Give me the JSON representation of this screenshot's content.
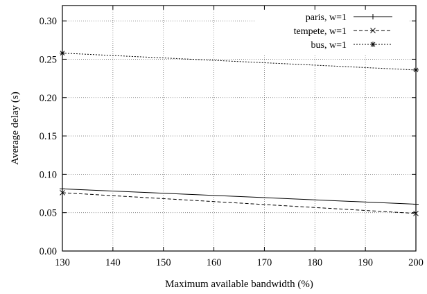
{
  "chart_data": {
    "type": "line",
    "title": "",
    "xlabel": "Maximum available bandwidth (%)",
    "ylabel": "Average delay (s)",
    "xlim": [
      130,
      200
    ],
    "ylim": [
      0.0,
      0.32
    ],
    "xticks": [
      130,
      140,
      150,
      160,
      170,
      180,
      190,
      200
    ],
    "yticks": [
      0.0,
      0.05,
      0.1,
      0.15,
      0.2,
      0.25,
      0.3
    ],
    "xtick_labels": [
      "130",
      "140",
      "150",
      "160",
      "170",
      "180",
      "190",
      "200"
    ],
    "ytick_labels": [
      "0.00",
      "0.05",
      "0.10",
      "0.15",
      "0.20",
      "0.25",
      "0.30"
    ],
    "grid": true,
    "legend_position": "top-right",
    "series": [
      {
        "name": "paris, w=1",
        "line_style": "solid",
        "marker": "plus",
        "x": [
          130,
          200
        ],
        "y": [
          0.081,
          0.061
        ]
      },
      {
        "name": "tempete, w=1",
        "line_style": "dashed",
        "marker": "cross",
        "x": [
          130,
          200
        ],
        "y": [
          0.076,
          0.049
        ]
      },
      {
        "name": "bus, w=1",
        "line_style": "dotted",
        "marker": "star",
        "x": [
          130,
          200
        ],
        "y": [
          0.258,
          0.236
        ]
      }
    ]
  }
}
